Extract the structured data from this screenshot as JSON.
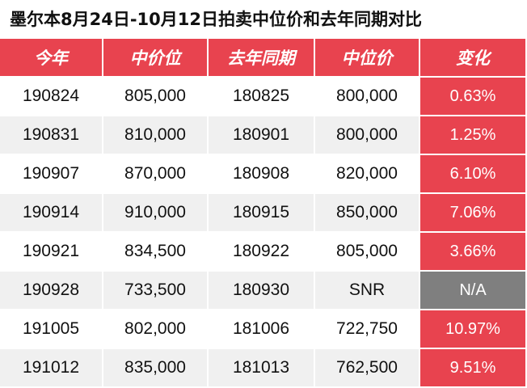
{
  "title": "墨尔本8月24日-10月12日拍卖中位价和去年同期对比",
  "colors": {
    "accent": "#e8434f",
    "na": "#7f7f7f",
    "row_alt": "#f0f0f0"
  },
  "headers": [
    "今年",
    "中价位",
    "去年同期",
    "中位价",
    "变化"
  ],
  "rows": [
    {
      "this_year": "190824",
      "median_this": "805,000",
      "last_year": "180825",
      "median_last": "800,000",
      "change": "0.63%"
    },
    {
      "this_year": "190831",
      "median_this": "810,000",
      "last_year": "180901",
      "median_last": "800,000",
      "change": "1.25%"
    },
    {
      "this_year": "190907",
      "median_this": "870,000",
      "last_year": "180908",
      "median_last": "820,000",
      "change": "6.10%"
    },
    {
      "this_year": "190914",
      "median_this": "910,000",
      "last_year": "180915",
      "median_last": "850,000",
      "change": "7.06%"
    },
    {
      "this_year": "190921",
      "median_this": "834,500",
      "last_year": "180922",
      "median_last": "805,000",
      "change": "3.66%"
    },
    {
      "this_year": "190928",
      "median_this": "733,500",
      "last_year": "180930",
      "median_last": "SNR",
      "change": "N/A"
    },
    {
      "this_year": "191005",
      "median_this": "802,000",
      "last_year": "181006",
      "median_last": "722,750",
      "change": "10.97%"
    },
    {
      "this_year": "191012",
      "median_this": "835,000",
      "last_year": "181013",
      "median_last": "762,500",
      "change": "9.51%"
    }
  ]
}
